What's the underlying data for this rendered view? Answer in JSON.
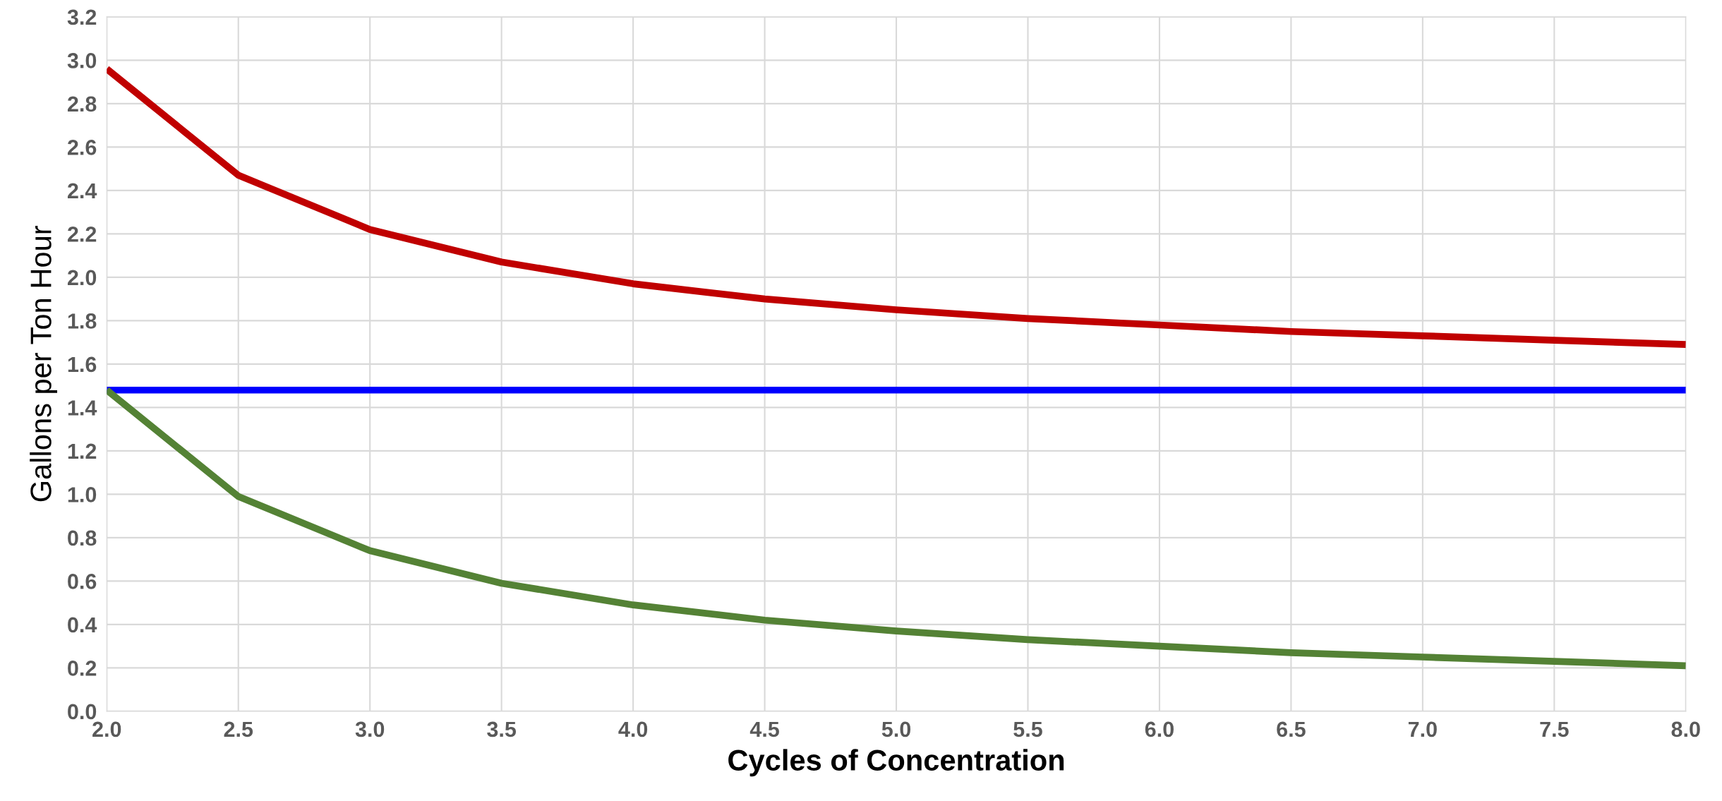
{
  "chart_data": {
    "type": "line",
    "xlabel": "Cycles of Concentration",
    "ylabel": "Gallons per Ton Hour",
    "x": [
      2.0,
      2.5,
      3.0,
      3.5,
      4.0,
      4.5,
      5.0,
      5.5,
      6.0,
      6.5,
      7.0,
      7.5,
      8.0
    ],
    "series": [
      {
        "color": "#c00000",
        "values": [
          2.96,
          2.47,
          2.22,
          2.07,
          1.97,
          1.9,
          1.85,
          1.81,
          1.78,
          1.75,
          1.73,
          1.71,
          1.69
        ]
      },
      {
        "color": "#0000ff",
        "values": [
          1.48,
          1.48,
          1.48,
          1.48,
          1.48,
          1.48,
          1.48,
          1.48,
          1.48,
          1.48,
          1.48,
          1.48,
          1.48
        ]
      },
      {
        "color": "#548235",
        "values": [
          1.48,
          0.99,
          0.74,
          0.59,
          0.49,
          0.42,
          0.37,
          0.33,
          0.3,
          0.27,
          0.25,
          0.23,
          0.21
        ]
      }
    ],
    "xlim": [
      2.0,
      8.0
    ],
    "xticks": [
      {
        "value": 2,
        "label": "2.0"
      },
      2.5,
      {
        "value": 3,
        "label": "3.0"
      },
      3.5,
      {
        "value": 4,
        "label": "4.0"
      },
      4.5,
      {
        "value": 5,
        "label": "5.0"
      },
      5.5,
      {
        "value": 6,
        "label": "6.0"
      },
      6.5,
      {
        "value": 7,
        "label": "7.0"
      },
      7.5,
      {
        "value": 8,
        "label": "8.0"
      }
    ],
    "ylim": [
      0,
      3.2
    ],
    "yticks": [
      {
        "value": 0,
        "label": "0.0"
      },
      0.2,
      0.4,
      0.6,
      0.8,
      {
        "value": 1,
        "label": "1.0"
      },
      1.2,
      1.4,
      1.6,
      1.8,
      {
        "value": 2,
        "label": "2.0"
      },
      2.2,
      2.4,
      2.6,
      2.8,
      {
        "value": 3,
        "label": "3.0"
      },
      3.2
    ],
    "grid": true,
    "legend": false,
    "marker": "none",
    "line_style": "solid"
  }
}
